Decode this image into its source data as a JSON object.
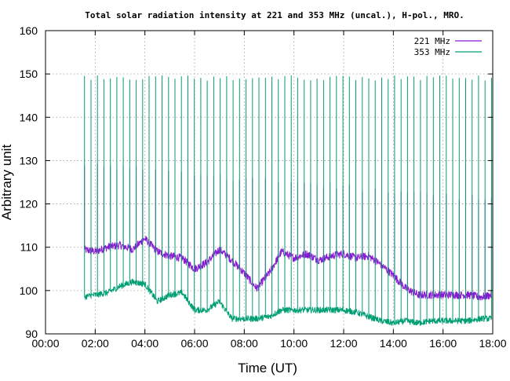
{
  "chart_data": {
    "type": "line",
    "title": "Total solar radiation intensity at 221 and 353 MHz (uncal.), H-pol., MRO.",
    "xlabel": "Time (UT)",
    "ylabel": "Arbitrary unit",
    "xlim": [
      0,
      18
    ],
    "ylim": [
      90,
      160
    ],
    "x_ticks": [
      "00:00",
      "02:00",
      "04:00",
      "06:00",
      "08:00",
      "10:00",
      "12:00",
      "14:00",
      "16:00",
      "18:00"
    ],
    "y_ticks": [
      90,
      100,
      110,
      120,
      130,
      140,
      150,
      160
    ],
    "grid": true,
    "legend_position": "top-right",
    "calibration_spikes": {
      "start_hour": 1.57,
      "end_hour": 17.95,
      "count": 64,
      "series_221_range": [
        121,
        129
      ],
      "series_353_peak": 149
    },
    "series": [
      {
        "name": "221 MHz",
        "color": "#8b19d3",
        "x_hours": [
          1.5,
          2.0,
          2.5,
          3.0,
          3.5,
          4.0,
          4.5,
          5.0,
          5.5,
          6.0,
          6.5,
          7.0,
          7.5,
          8.0,
          8.5,
          9.0,
          9.5,
          10.0,
          10.5,
          11.0,
          11.5,
          12.0,
          12.5,
          13.0,
          13.5,
          14.0,
          14.5,
          15.0,
          15.5,
          16.0,
          16.5,
          17.0,
          17.5,
          18.0
        ],
        "values": [
          109.5,
          109,
          110,
          110.5,
          109.5,
          112,
          109,
          108,
          107.5,
          105,
          106.5,
          109.5,
          107,
          104,
          100.5,
          104,
          109,
          107.5,
          108.5,
          107,
          108,
          108.5,
          107.5,
          108,
          106,
          103.5,
          100.5,
          99,
          99,
          99,
          99,
          99,
          98.5,
          99
        ]
      },
      {
        "name": "353 MHz",
        "color": "#009e73",
        "x_hours": [
          1.5,
          2.0,
          2.5,
          3.0,
          3.5,
          4.0,
          4.5,
          5.0,
          5.5,
          6.0,
          6.5,
          7.0,
          7.5,
          8.0,
          8.5,
          9.0,
          9.5,
          10.0,
          10.5,
          11.0,
          11.5,
          12.0,
          12.5,
          13.0,
          13.5,
          14.0,
          14.5,
          15.0,
          15.5,
          16.0,
          16.5,
          17.0,
          17.5,
          18.0
        ],
        "values": [
          98.5,
          99,
          99.5,
          101,
          102,
          101.5,
          97.5,
          99,
          99.5,
          95.5,
          95.5,
          97.5,
          93.5,
          93.5,
          93.5,
          94,
          95.5,
          95.5,
          95.5,
          95.5,
          95.5,
          95.5,
          95,
          94,
          93,
          92.5,
          93,
          92.5,
          93,
          93,
          93,
          93,
          93.5,
          93.5
        ]
      }
    ]
  }
}
